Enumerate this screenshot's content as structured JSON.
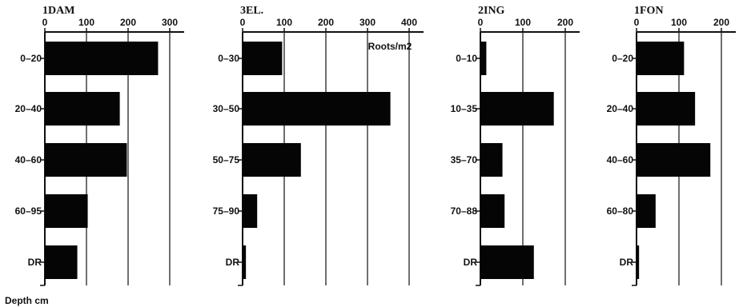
{
  "footer_label": "Depth cm",
  "chart_data": [
    {
      "type": "bar",
      "orientation": "horizontal",
      "title": "1DAM",
      "categories": [
        "0-20",
        "20-40",
        "40-60",
        "60-95",
        "DR"
      ],
      "values": [
        272,
        180,
        197,
        103,
        78
      ],
      "xlim": [
        0,
        300
      ],
      "xticks": [
        0,
        100,
        200,
        300
      ],
      "grid": true
    },
    {
      "type": "bar",
      "orientation": "horizontal",
      "title": "3EL.",
      "unit_label": "Roots/m2",
      "categories": [
        "0-30",
        "30-50",
        "50-75",
        "75-90",
        "DR"
      ],
      "values": [
        95,
        355,
        140,
        35,
        8
      ],
      "xlim": [
        0,
        400
      ],
      "xticks": [
        0,
        100,
        200,
        300,
        400
      ],
      "grid": true
    },
    {
      "type": "bar",
      "orientation": "horizontal",
      "title": "2ING",
      "categories": [
        "0-10",
        "10-35",
        "35-70",
        "70-88",
        "DR"
      ],
      "values": [
        14,
        173,
        52,
        57,
        126
      ],
      "xlim": [
        0,
        200
      ],
      "xticks": [
        0,
        100,
        200
      ],
      "grid": true
    },
    {
      "type": "bar",
      "orientation": "horizontal",
      "title": "1FON",
      "categories": [
        "0-20",
        "20-40",
        "40-60",
        "60-80",
        "DR"
      ],
      "values": [
        112,
        138,
        174,
        45,
        6
      ],
      "xlim": [
        0,
        200
      ],
      "xticks": [
        0,
        100,
        200
      ],
      "grid": true
    }
  ]
}
